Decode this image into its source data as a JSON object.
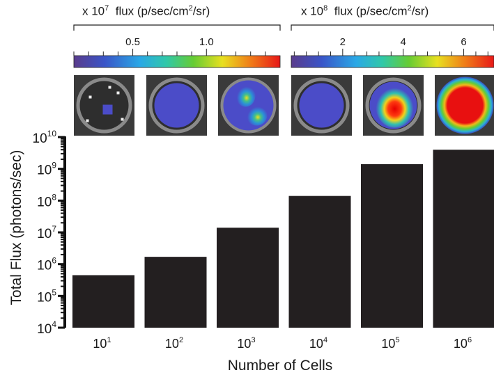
{
  "colorbars": [
    {
      "label_prefix": "x 10",
      "label_exp": "7",
      "label_mid": "flux (p/sec/cm",
      "label_exp2": "2",
      "label_tail": "/sr)",
      "tick_labels": [
        "0.5",
        "1.0"
      ],
      "tick_values": [
        0.5,
        1.0
      ],
      "range": [
        0.1,
        1.5
      ]
    },
    {
      "label_prefix": "x 10",
      "label_exp": "8",
      "label_mid": "flux (p/sec/cm",
      "label_exp2": "2",
      "label_tail": "/sr)",
      "tick_labels": [
        "2",
        "4",
        "6"
      ],
      "tick_values": [
        2,
        4,
        6
      ],
      "range": [
        0.3,
        7
      ]
    }
  ],
  "wells": [
    {
      "cells": "10^1",
      "pattern": "small-spot"
    },
    {
      "cells": "10^2",
      "pattern": "low-uniform"
    },
    {
      "cells": "10^3",
      "pattern": "medium-spots"
    },
    {
      "cells": "10^4",
      "pattern": "low-uniform"
    },
    {
      "cells": "10^5",
      "pattern": "high-blob"
    },
    {
      "cells": "10^6",
      "pattern": "saturated"
    }
  ],
  "chart_data": {
    "type": "bar",
    "scale": "log",
    "categories": [
      "10^1",
      "10^2",
      "10^3",
      "10^4",
      "10^5",
      "10^6"
    ],
    "values": [
      450000,
      1700000,
      14000000,
      140000000,
      1400000000,
      4000000000
    ],
    "xlabel": "Number of Cells",
    "ylabel": "Total Flux (photons/sec)",
    "ylim": [
      10000,
      10000000000
    ],
    "yticks": [
      10000,
      100000,
      1000000,
      10000000,
      100000000,
      1000000000,
      10000000000
    ],
    "bar_color": "#231f20",
    "grid": false
  }
}
